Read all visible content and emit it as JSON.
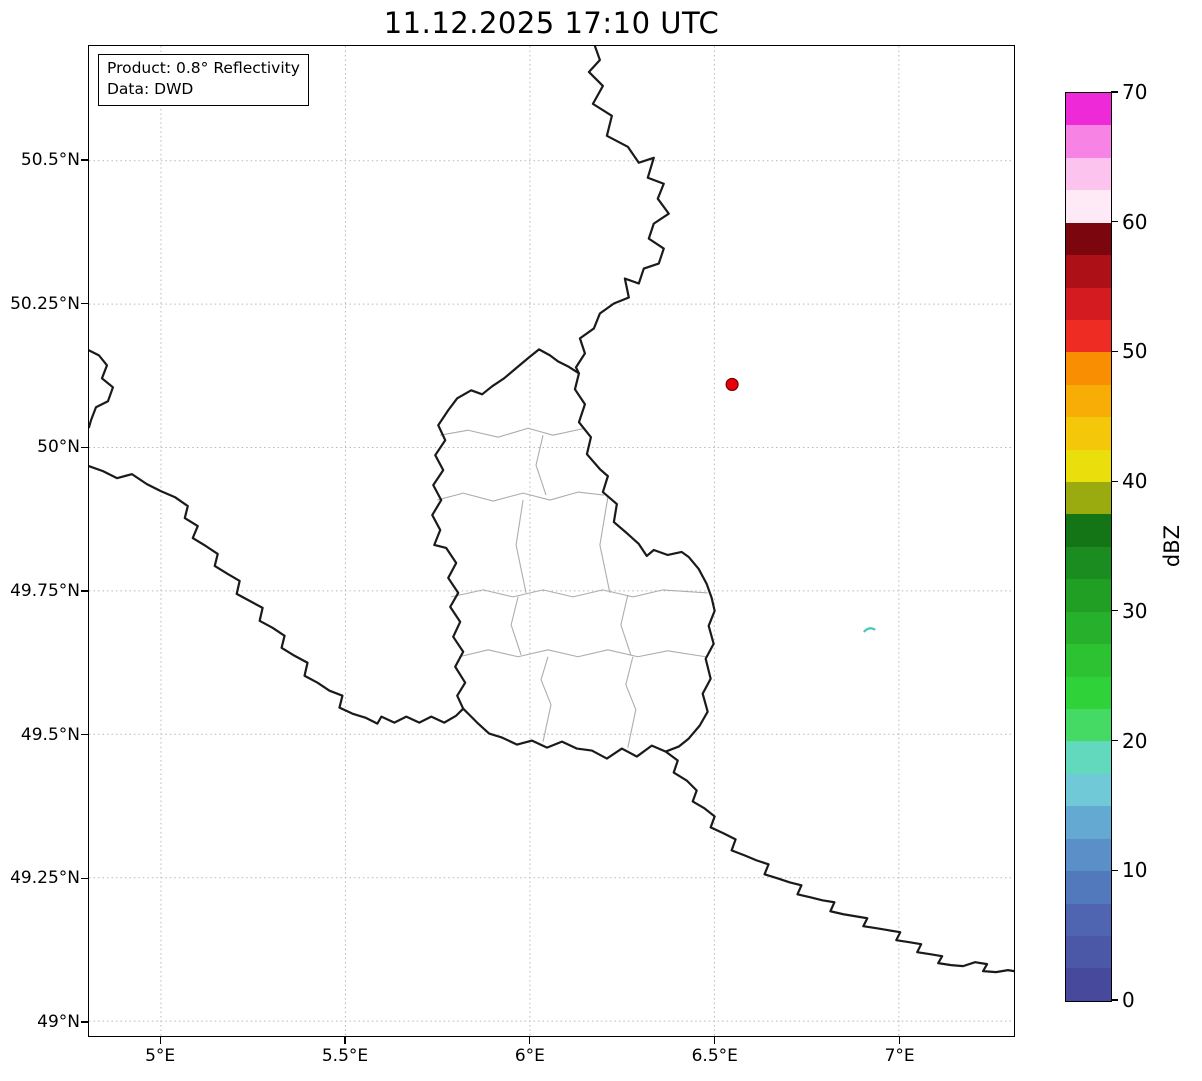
{
  "title": "11.12.2025 17:10 UTC",
  "info_box": {
    "product": "Product: 0.8° Reflectivity",
    "source": "Data: DWD"
  },
  "map": {
    "lon_range": [
      4.805,
      7.312
    ],
    "lat_range": [
      48.974,
      50.7
    ],
    "lon_ticks": [
      {
        "label": "5°E",
        "value": 5.0
      },
      {
        "label": "5.5°E",
        "value": 5.5
      },
      {
        "label": "6°E",
        "value": 6.0
      },
      {
        "label": "6.5°E",
        "value": 6.5
      },
      {
        "label": "7°E",
        "value": 7.0
      }
    ],
    "lat_ticks": [
      {
        "label": "50.5°N",
        "value": 50.5
      },
      {
        "label": "50.25°N",
        "value": 50.25
      },
      {
        "label": "50°N",
        "value": 50.0
      },
      {
        "label": "49.75°N",
        "value": 49.75
      },
      {
        "label": "49.5°N",
        "value": 49.5
      },
      {
        "label": "49.25°N",
        "value": 49.25
      },
      {
        "label": "49°N",
        "value": 49.0
      }
    ],
    "radar_site_marker": {
      "lon": 6.548,
      "lat": 50.11,
      "fill": "#e8000b",
      "edge": "#6e0000"
    },
    "radar_echo": {
      "lon": 6.92,
      "lat": 49.683,
      "color": "#3fc9b7"
    },
    "gridline_color": "#b8b8b8",
    "border_color": "#1a1a1a",
    "canton_color": "#adadad"
  },
  "colorbar": {
    "label": "dBZ",
    "min": 0,
    "max": 70,
    "ticks": [
      {
        "label": "0",
        "value": 0
      },
      {
        "label": "10",
        "value": 10
      },
      {
        "label": "20",
        "value": 20
      },
      {
        "label": "30",
        "value": 30
      },
      {
        "label": "40",
        "value": 40
      },
      {
        "label": "50",
        "value": 50
      },
      {
        "label": "60",
        "value": 60
      },
      {
        "label": "70",
        "value": 70
      }
    ],
    "colors_bottom_to_top": [
      "#46499c",
      "#4b57a7",
      "#5065b1",
      "#5379bd",
      "#5b8fc8",
      "#63a9d2",
      "#6fc9d7",
      "#62d9bd",
      "#44da63",
      "#30d239",
      "#2cc232",
      "#26b02b",
      "#219f25",
      "#1b8c1f",
      "#147517",
      "#9aab10",
      "#eadf0d",
      "#f4c70a",
      "#f7ad06",
      "#f98e03",
      "#ef2c23",
      "#d31b20",
      "#ad1016",
      "#7c060d",
      "#fdeaf6",
      "#fbc3ee",
      "#f784e4",
      "#ee2ad8"
    ]
  }
}
